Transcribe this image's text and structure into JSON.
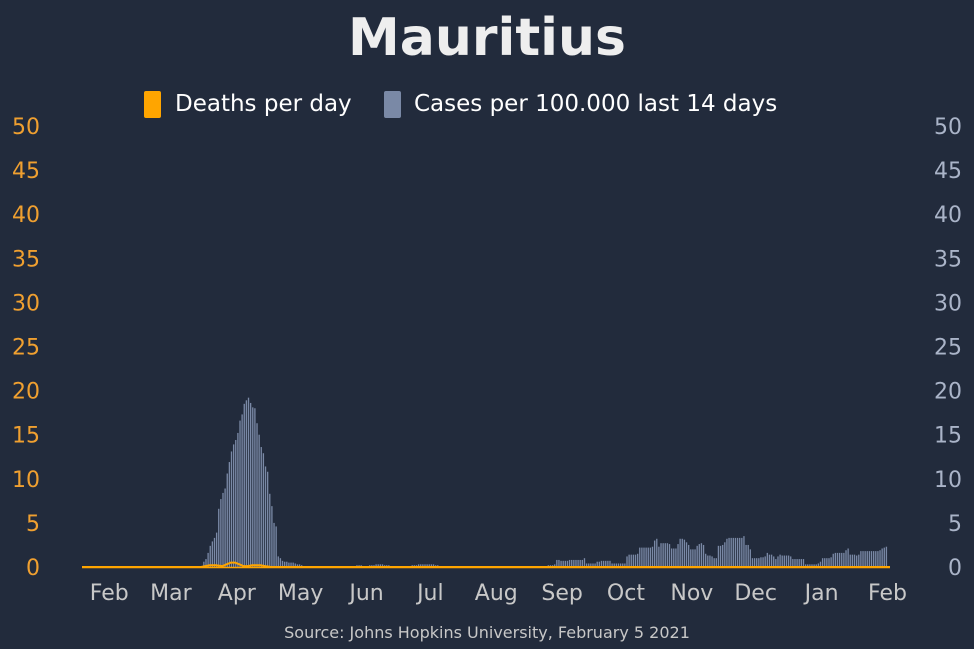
{
  "chart_data": {
    "type": "bar",
    "title": "Mauritius",
    "source": "Source: Johns Hopkins University, February 5 2021",
    "legend": {
      "placement": "top-center",
      "items": [
        {
          "label": "Deaths per day",
          "color": "#ffa500"
        },
        {
          "label": "Cases per 100.000 last 14 days",
          "color": "#7a89a6"
        }
      ]
    },
    "x_start": "2020-01-22",
    "x_end": "2021-02-05",
    "x_ticks": [
      {
        "label": "Feb",
        "date": "2020-02-01"
      },
      {
        "label": "Mar",
        "date": "2020-03-01"
      },
      {
        "label": "Apr",
        "date": "2020-04-01"
      },
      {
        "label": "May",
        "date": "2020-05-01"
      },
      {
        "label": "Jun",
        "date": "2020-06-01"
      },
      {
        "label": "Jul",
        "date": "2020-07-01"
      },
      {
        "label": "Aug",
        "date": "2020-08-01"
      },
      {
        "label": "Sep",
        "date": "2020-09-01"
      },
      {
        "label": "Oct",
        "date": "2020-10-01"
      },
      {
        "label": "Nov",
        "date": "2020-11-01"
      },
      {
        "label": "Dec",
        "date": "2020-12-01"
      },
      {
        "label": "Jan",
        "date": "2021-01-01"
      },
      {
        "label": "Feb",
        "date": "2021-02-01"
      }
    ],
    "y_left": {
      "min": 0,
      "max": 50,
      "ticks": [
        0,
        5,
        10,
        15,
        20,
        25,
        30,
        35,
        40,
        45,
        50
      ],
      "color": "#f0a030"
    },
    "y_right": {
      "min": 0,
      "max": 50,
      "ticks": [
        0,
        5,
        10,
        15,
        20,
        25,
        30,
        35,
        40,
        45,
        50
      ],
      "color": "#aab4c8"
    },
    "grid": false,
    "cases_per_100k_14d": {
      "name": "Cases per 100.000 last 14 days",
      "points": [
        [
          "2020-03-18",
          0.0
        ],
        [
          "2020-03-19",
          0.6
        ],
        [
          "2020-03-20",
          0.9
        ],
        [
          "2020-03-21",
          1.6
        ],
        [
          "2020-03-22",
          2.4
        ],
        [
          "2020-03-23",
          2.9
        ],
        [
          "2020-03-24",
          3.3
        ],
        [
          "2020-03-25",
          3.9
        ],
        [
          "2020-03-26",
          6.6
        ],
        [
          "2020-03-27",
          7.7
        ],
        [
          "2020-03-28",
          8.4
        ],
        [
          "2020-03-29",
          8.9
        ],
        [
          "2020-03-30",
          10.6
        ],
        [
          "2020-03-31",
          11.9
        ],
        [
          "2020-04-01",
          13.1
        ],
        [
          "2020-04-02",
          13.9
        ],
        [
          "2020-04-03",
          14.4
        ],
        [
          "2020-04-04",
          15.2
        ],
        [
          "2020-04-05",
          16.6
        ],
        [
          "2020-04-06",
          17.3
        ],
        [
          "2020-04-07",
          18.5
        ],
        [
          "2020-04-08",
          18.9
        ],
        [
          "2020-04-09",
          19.2
        ],
        [
          "2020-04-10",
          18.6
        ],
        [
          "2020-04-11",
          18.1
        ],
        [
          "2020-04-12",
          18.0
        ],
        [
          "2020-04-13",
          16.3
        ],
        [
          "2020-04-14",
          15.0
        ],
        [
          "2020-04-15",
          13.6
        ],
        [
          "2020-04-16",
          12.9
        ],
        [
          "2020-04-17",
          11.4
        ],
        [
          "2020-04-18",
          10.8
        ],
        [
          "2020-04-19",
          8.3
        ],
        [
          "2020-04-20",
          6.9
        ],
        [
          "2020-04-21",
          5.0
        ],
        [
          "2020-04-22",
          4.6
        ],
        [
          "2020-04-23",
          1.2
        ],
        [
          "2020-04-24",
          1.0
        ],
        [
          "2020-04-25",
          0.7
        ],
        [
          "2020-04-26",
          0.6
        ],
        [
          "2020-04-27",
          0.6
        ],
        [
          "2020-04-28",
          0.5
        ],
        [
          "2020-04-29",
          0.5
        ],
        [
          "2020-04-30",
          0.5
        ],
        [
          "2020-05-01",
          0.4
        ],
        [
          "2020-05-02",
          0.3
        ],
        [
          "2020-05-03",
          0.3
        ],
        [
          "2020-05-04",
          0.2
        ],
        [
          "2020-05-05",
          0.1
        ],
        [
          "2020-05-25",
          0.1
        ],
        [
          "2020-05-30",
          0.2
        ],
        [
          "2020-06-05",
          0.2
        ],
        [
          "2020-06-08",
          0.3
        ],
        [
          "2020-06-10",
          0.3
        ],
        [
          "2020-06-12",
          0.2
        ],
        [
          "2020-06-15",
          0.1
        ],
        [
          "2020-06-22",
          0.1
        ],
        [
          "2020-06-25",
          0.2
        ],
        [
          "2020-06-28",
          0.3
        ],
        [
          "2020-07-01",
          0.3
        ],
        [
          "2020-07-04",
          0.3
        ],
        [
          "2020-07-06",
          0.2
        ],
        [
          "2020-07-08",
          0.1
        ],
        [
          "2020-07-20",
          0.1
        ],
        [
          "2020-07-25",
          0.1
        ],
        [
          "2020-08-05",
          0.1
        ],
        [
          "2020-08-15",
          0.1
        ],
        [
          "2020-08-25",
          0.1
        ],
        [
          "2020-08-28",
          0.2
        ],
        [
          "2020-08-31",
          0.3
        ],
        [
          "2020-09-01",
          0.8
        ],
        [
          "2020-09-03",
          0.7
        ],
        [
          "2020-09-05",
          0.7
        ],
        [
          "2020-09-07",
          0.8
        ],
        [
          "2020-09-09",
          0.8
        ],
        [
          "2020-09-11",
          0.8
        ],
        [
          "2020-09-13",
          0.8
        ],
        [
          "2020-09-14",
          1.0
        ],
        [
          "2020-09-15",
          0.4
        ],
        [
          "2020-09-16",
          0.4
        ],
        [
          "2020-09-18",
          0.4
        ],
        [
          "2020-09-20",
          0.6
        ],
        [
          "2020-09-22",
          0.7
        ],
        [
          "2020-09-24",
          0.7
        ],
        [
          "2020-09-26",
          0.7
        ],
        [
          "2020-09-27",
          0.4
        ],
        [
          "2020-09-29",
          0.4
        ],
        [
          "2020-10-01",
          0.4
        ],
        [
          "2020-10-03",
          0.4
        ],
        [
          "2020-10-04",
          1.2
        ],
        [
          "2020-10-05",
          1.4
        ],
        [
          "2020-10-07",
          1.4
        ],
        [
          "2020-10-09",
          1.5
        ],
        [
          "2020-10-10",
          2.2
        ],
        [
          "2020-10-12",
          2.2
        ],
        [
          "2020-10-14",
          2.2
        ],
        [
          "2020-10-16",
          2.3
        ],
        [
          "2020-10-17",
          3.0
        ],
        [
          "2020-10-18",
          3.2
        ],
        [
          "2020-10-19",
          2.3
        ],
        [
          "2020-10-20",
          2.7
        ],
        [
          "2020-10-22",
          2.7
        ],
        [
          "2020-10-24",
          2.6
        ],
        [
          "2020-10-25",
          2.1
        ],
        [
          "2020-10-26",
          2.1
        ],
        [
          "2020-10-28",
          2.6
        ],
        [
          "2020-10-29",
          3.2
        ],
        [
          "2020-10-30",
          3.2
        ],
        [
          "2020-10-31",
          3.1
        ],
        [
          "2020-11-01",
          2.8
        ],
        [
          "2020-11-02",
          2.5
        ],
        [
          "2020-11-03",
          2.0
        ],
        [
          "2020-11-05",
          2.0
        ],
        [
          "2020-11-06",
          2.4
        ],
        [
          "2020-11-07",
          2.6
        ],
        [
          "2020-11-08",
          2.7
        ],
        [
          "2020-11-09",
          2.5
        ],
        [
          "2020-11-10",
          1.5
        ],
        [
          "2020-11-11",
          1.3
        ],
        [
          "2020-11-13",
          1.2
        ],
        [
          "2020-11-14",
          1.0
        ],
        [
          "2020-11-15",
          1.0
        ],
        [
          "2020-11-16",
          2.4
        ],
        [
          "2020-11-17",
          2.4
        ],
        [
          "2020-11-18",
          2.5
        ],
        [
          "2020-11-19",
          2.8
        ],
        [
          "2020-11-20",
          3.2
        ],
        [
          "2020-11-21",
          3.3
        ],
        [
          "2020-11-23",
          3.3
        ],
        [
          "2020-11-25",
          3.3
        ],
        [
          "2020-11-27",
          3.3
        ],
        [
          "2020-11-28",
          3.5
        ],
        [
          "2020-11-29",
          2.5
        ],
        [
          "2020-11-30",
          2.5
        ],
        [
          "2020-12-01",
          2.0
        ],
        [
          "2020-12-02",
          1.0
        ],
        [
          "2020-12-04",
          1.0
        ],
        [
          "2020-12-06",
          1.1
        ],
        [
          "2020-12-08",
          1.2
        ],
        [
          "2020-12-09",
          1.6
        ],
        [
          "2020-12-10",
          1.4
        ],
        [
          "2020-12-12",
          1.2
        ],
        [
          "2020-12-13",
          0.9
        ],
        [
          "2020-12-14",
          1.2
        ],
        [
          "2020-12-15",
          1.4
        ],
        [
          "2020-12-16",
          1.3
        ],
        [
          "2020-12-18",
          1.3
        ],
        [
          "2020-12-20",
          1.2
        ],
        [
          "2020-12-21",
          0.9
        ],
        [
          "2020-12-22",
          0.9
        ],
        [
          "2020-12-24",
          0.9
        ],
        [
          "2020-12-26",
          0.9
        ],
        [
          "2020-12-27",
          0.3
        ],
        [
          "2020-12-28",
          0.3
        ],
        [
          "2020-12-30",
          0.3
        ],
        [
          "2021-01-01",
          0.3
        ],
        [
          "2021-01-02",
          0.4
        ],
        [
          "2021-01-03",
          0.6
        ],
        [
          "2021-01-04",
          1.0
        ],
        [
          "2021-01-05",
          1.0
        ],
        [
          "2021-01-07",
          1.0
        ],
        [
          "2021-01-08",
          1.1
        ],
        [
          "2021-01-09",
          1.5
        ],
        [
          "2021-01-10",
          1.6
        ],
        [
          "2021-01-12",
          1.6
        ],
        [
          "2021-01-14",
          1.6
        ],
        [
          "2021-01-15",
          1.9
        ],
        [
          "2021-01-16",
          2.1
        ],
        [
          "2021-01-17",
          1.4
        ],
        [
          "2021-01-18",
          1.4
        ],
        [
          "2021-01-20",
          1.3
        ],
        [
          "2021-01-21",
          1.4
        ],
        [
          "2021-01-22",
          1.8
        ],
        [
          "2021-01-23",
          1.8
        ],
        [
          "2021-01-25",
          1.8
        ],
        [
          "2021-01-27",
          1.8
        ],
        [
          "2021-01-29",
          1.8
        ],
        [
          "2021-01-31",
          1.9
        ],
        [
          "2021-02-01",
          2.1
        ],
        [
          "2021-02-02",
          2.2
        ],
        [
          "2021-02-03",
          2.3
        ]
      ]
    },
    "deaths_per_day": {
      "name": "Deaths per day",
      "points": [
        [
          "2020-01-22",
          0
        ],
        [
          "2020-03-18",
          0
        ],
        [
          "2020-03-20",
          0.1
        ],
        [
          "2020-03-22",
          0.2
        ],
        [
          "2020-03-25",
          0.2
        ],
        [
          "2020-03-28",
          0.1
        ],
        [
          "2020-03-30",
          0.3
        ],
        [
          "2020-04-01",
          0.5
        ],
        [
          "2020-04-03",
          0.5
        ],
        [
          "2020-04-05",
          0.3
        ],
        [
          "2020-04-07",
          0.1
        ],
        [
          "2020-04-09",
          0.1
        ],
        [
          "2020-04-11",
          0.2
        ],
        [
          "2020-04-13",
          0.2
        ],
        [
          "2020-04-15",
          0.2
        ],
        [
          "2020-04-17",
          0.1
        ],
        [
          "2020-04-20",
          0
        ],
        [
          "2021-02-05",
          0
        ]
      ]
    }
  }
}
